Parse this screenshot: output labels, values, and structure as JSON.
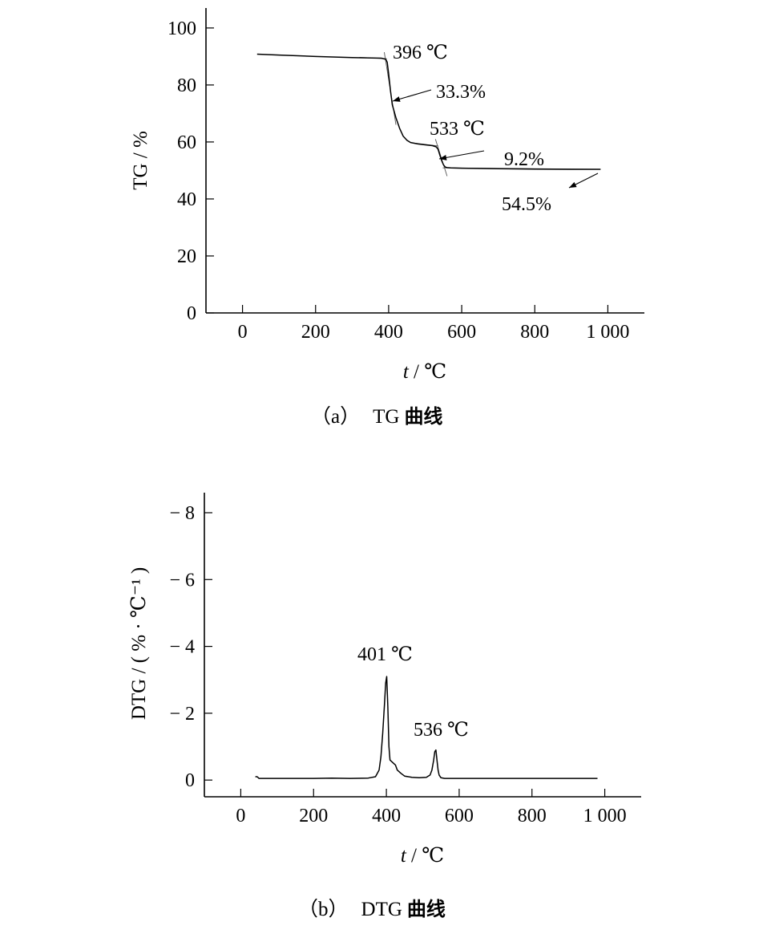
{
  "chart_data": [
    {
      "type": "line",
      "ylabel": "TG / %",
      "xlabel_var": "t",
      "xlabel_unit": " / ℃",
      "xlim": [
        -100,
        1100
      ],
      "ylim": [
        0,
        107
      ],
      "x_ticks": [
        0,
        200,
        400,
        600,
        800,
        1000
      ],
      "x_tick_labels": [
        "0",
        "200",
        "400",
        "600",
        "800",
        "1 000"
      ],
      "y_ticks": [
        0,
        20,
        40,
        60,
        80,
        100
      ],
      "y_tick_labels": [
        "0",
        "20",
        "40",
        "60",
        "80",
        "100"
      ],
      "series": [
        {
          "x": [
            40,
            100,
            200,
            300,
            380,
            392,
            396,
            400,
            405,
            410,
            420,
            430,
            440,
            450,
            460,
            480,
            500,
            520,
            530,
            535,
            540,
            545,
            550,
            555,
            560,
            570,
            600,
            700,
            800,
            900,
            980
          ],
          "y": [
            90.8,
            90.5,
            90.0,
            89.6,
            89.4,
            89.0,
            88.0,
            84.0,
            78.0,
            73.0,
            68.5,
            64.8,
            62.0,
            60.6,
            59.8,
            59.3,
            59.0,
            58.7,
            58.3,
            57.5,
            55.5,
            53.5,
            52.0,
            51.2,
            51.0,
            50.9,
            50.8,
            50.6,
            50.5,
            50.4,
            50.4
          ]
        }
      ],
      "annotations": [
        {
          "text": "396 ℃",
          "x": 396,
          "y": 88.5,
          "dx": 5,
          "dy": 5
        },
        {
          "text": "33.3%",
          "x": 412,
          "y": 73,
          "dx": 80,
          "dy": 6
        },
        {
          "text": "533 ℃",
          "x": 540,
          "y": 54,
          "dx": 60,
          "dy": 7
        },
        {
          "text": "9.2%",
          "x": 720,
          "y": 53,
          "dx": 0,
          "dy": 0
        },
        {
          "text": "54.5%",
          "x": 720,
          "y": 50.5,
          "dx": 30,
          "dy": -11
        }
      ],
      "caption_label": "（a）",
      "caption_name": "TG",
      "caption_suffix": "曲线"
    },
    {
      "type": "line",
      "ylabel": "DTG / ( % · ℃⁻¹ )",
      "xlabel_var": "t",
      "xlabel_unit": " / ℃",
      "xlim": [
        -100,
        1100
      ],
      "ylim": [
        0.5,
        -8.6
      ],
      "x_ticks": [
        0,
        200,
        400,
        600,
        800,
        1000
      ],
      "x_tick_labels": [
        "0",
        "200",
        "400",
        "600",
        "800",
        "1 000"
      ],
      "y_ticks": [
        0,
        -2,
        -4,
        -6,
        -8
      ],
      "y_tick_labels": [
        "0",
        "− 2",
        "− 4",
        "− 6",
        "− 8"
      ],
      "series": [
        {
          "x": [
            40,
            45,
            50,
            100,
            200,
            250,
            300,
            350,
            370,
            380,
            385,
            390,
            395,
            398,
            401,
            404,
            407,
            410,
            415,
            420,
            425,
            430,
            440,
            450,
            470,
            490,
            510,
            520,
            525,
            530,
            533,
            536,
            539,
            542,
            545,
            550,
            560,
            580,
            600,
            700,
            800,
            900,
            980
          ],
          "y": [
            -0.1,
            -0.1,
            -0.05,
            -0.05,
            -0.05,
            -0.06,
            -0.05,
            -0.06,
            -0.1,
            -0.3,
            -0.7,
            -1.4,
            -2.3,
            -2.9,
            -3.1,
            -2.2,
            -1.0,
            -0.6,
            -0.55,
            -0.5,
            -0.45,
            -0.3,
            -0.2,
            -0.12,
            -0.08,
            -0.07,
            -0.08,
            -0.15,
            -0.3,
            -0.6,
            -0.85,
            -0.9,
            -0.6,
            -0.3,
            -0.15,
            -0.07,
            -0.05,
            -0.05,
            -0.05,
            -0.05,
            -0.05,
            -0.05,
            -0.05
          ]
        }
      ],
      "annotations": [
        {
          "text": "401 ℃",
          "x": 401,
          "y": -3.1
        },
        {
          "text": "536 ℃",
          "x": 536,
          "y": -0.9
        }
      ],
      "caption_label": "（b）",
      "caption_name": "DTG",
      "caption_suffix": "曲线"
    }
  ]
}
